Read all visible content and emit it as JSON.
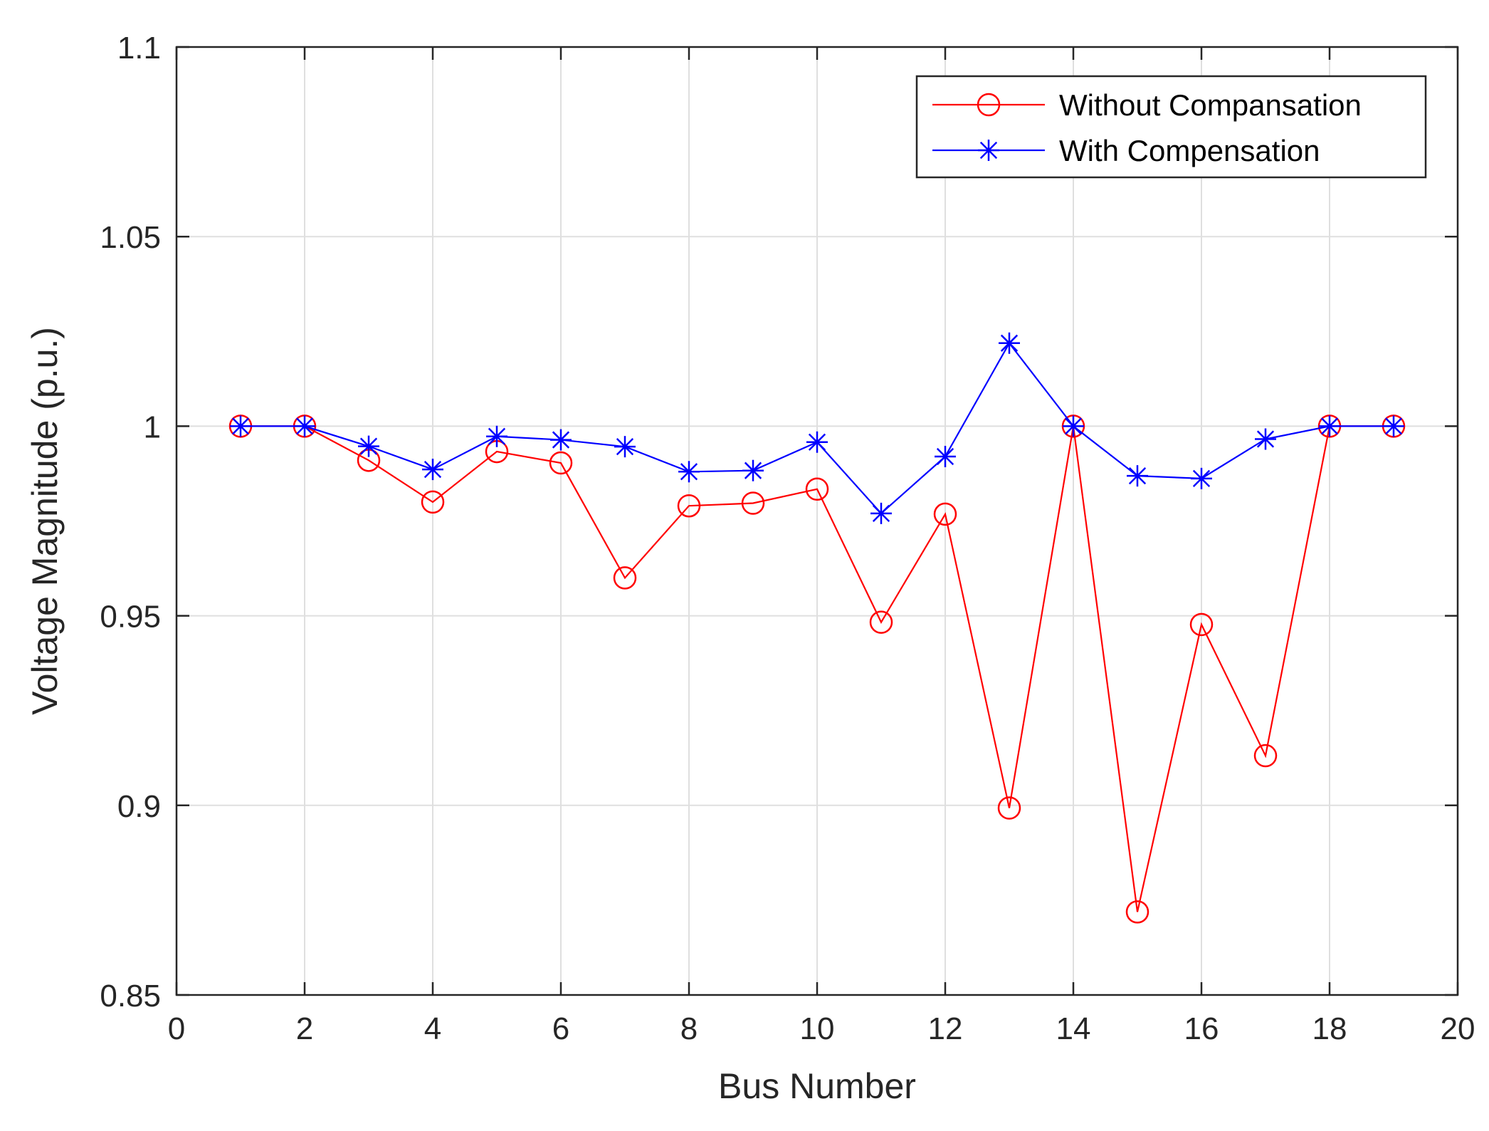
{
  "chart_data": {
    "type": "line",
    "title": "",
    "xlabel": "Bus Number",
    "ylabel": "Voltage Magnitude (p.u.)",
    "xlim": [
      0,
      20
    ],
    "ylim": [
      0.85,
      1.1
    ],
    "xticks": [
      0,
      2,
      4,
      6,
      8,
      10,
      12,
      14,
      16,
      18,
      20
    ],
    "yticks": [
      0.85,
      0.9,
      0.95,
      1,
      1.05,
      1.1
    ],
    "xtick_labels": [
      "0",
      "2",
      "4",
      "6",
      "8",
      "10",
      "12",
      "14",
      "16",
      "18",
      "20"
    ],
    "ytick_labels": [
      "0.85",
      "0.9",
      "0.95",
      "1",
      "1.05",
      "1.1"
    ],
    "grid": true,
    "legend_position": "top-right",
    "x": [
      1,
      2,
      3,
      4,
      5,
      6,
      7,
      8,
      9,
      10,
      11,
      12,
      13,
      14,
      15,
      16,
      17,
      18,
      19
    ],
    "series": [
      {
        "name": "Without Compansation",
        "color": "#ff0000",
        "marker": "circle",
        "values": [
          1.0,
          1.0,
          0.991,
          0.98,
          0.9933,
          0.9903,
          0.96,
          0.979,
          0.9797,
          0.9834,
          0.9483,
          0.9768,
          0.8993,
          1.0,
          0.8719,
          0.9477,
          0.9131,
          1.0,
          1.0
        ]
      },
      {
        "name": "With Compensation",
        "color": "#0000ff",
        "marker": "asterisk",
        "values": [
          1.0,
          1.0,
          0.9947,
          0.9886,
          0.9973,
          0.9964,
          0.9946,
          0.988,
          0.9883,
          0.9958,
          0.977,
          0.992,
          1.0219,
          1.0,
          0.9869,
          0.9862,
          0.9966,
          1.0,
          1.0
        ]
      }
    ]
  }
}
